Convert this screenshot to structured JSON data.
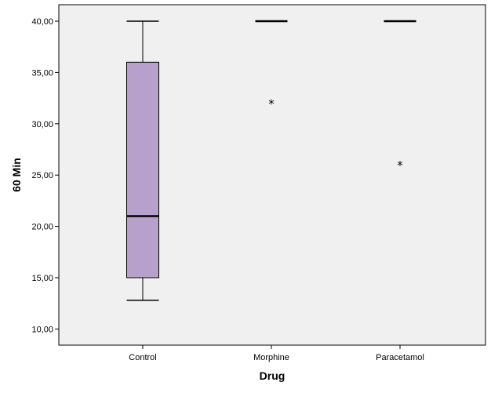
{
  "chart_data": {
    "type": "boxplot",
    "title": "",
    "xlabel": "Drug",
    "ylabel": "60 Min",
    "ylim": [
      8.5,
      41.5
    ],
    "yticks": [
      10,
      15,
      20,
      25,
      30,
      35,
      40
    ],
    "ytick_labels": [
      "10,00",
      "15,00",
      "20,00",
      "25,00",
      "30,00",
      "35,00",
      "40,00"
    ],
    "grid": false,
    "box_color": "#b7a0cc",
    "background_color": "#f0f0f0",
    "categories": [
      "Control",
      "Morphine",
      "Paracetamol"
    ],
    "boxes": [
      {
        "category": "Control",
        "whisker_low": 12.8,
        "q1": 15.0,
        "median": 21.0,
        "q3": 36.0,
        "whisker_high": 40.0,
        "outliers": [],
        "extremes": []
      },
      {
        "category": "Morphine",
        "whisker_low": 40.0,
        "q1": 40.0,
        "median": 40.0,
        "q3": 40.0,
        "whisker_high": 40.0,
        "outliers": [],
        "extremes": [
          32.0
        ]
      },
      {
        "category": "Paracetamol",
        "whisker_low": 40.0,
        "q1": 40.0,
        "median": 40.0,
        "q3": 40.0,
        "whisker_high": 40.0,
        "outliers": [],
        "extremes": [
          26.0
        ]
      }
    ],
    "extreme_marker": "*"
  }
}
